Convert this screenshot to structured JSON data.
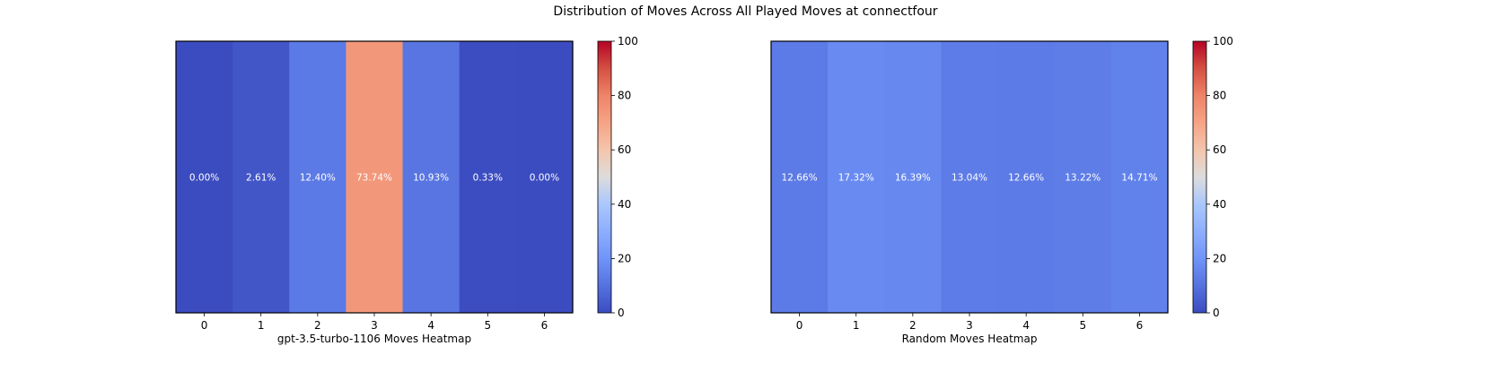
{
  "figure": {
    "title": "Distribution of Moves Across All Played Moves at connectfour"
  },
  "chart_data": [
    {
      "type": "heatmap",
      "xlabel": "gpt-3.5-turbo-1106 Moves Heatmap",
      "categories": [
        "0",
        "1",
        "2",
        "3",
        "4",
        "5",
        "6"
      ],
      "values": [
        0.0,
        2.61,
        12.4,
        73.74,
        10.93,
        0.33,
        0.0
      ],
      "value_labels": [
        "0.00%",
        "2.61%",
        "12.40%",
        "73.74%",
        "10.93%",
        "0.33%",
        "0.00%"
      ],
      "colormap": "coolwarm",
      "vmin": 0,
      "vmax": 100,
      "colorbar_ticks": [
        "0",
        "20",
        "40",
        "60",
        "80",
        "100"
      ]
    },
    {
      "type": "heatmap",
      "xlabel": "Random Moves Heatmap",
      "categories": [
        "0",
        "1",
        "2",
        "3",
        "4",
        "5",
        "6"
      ],
      "values": [
        12.66,
        17.32,
        16.39,
        13.04,
        12.66,
        13.22,
        14.71
      ],
      "value_labels": [
        "12.66%",
        "17.32%",
        "16.39%",
        "13.04%",
        "12.66%",
        "13.22%",
        "14.71%"
      ],
      "colormap": "coolwarm",
      "vmin": 0,
      "vmax": 100,
      "colorbar_ticks": [
        "0",
        "20",
        "40",
        "60",
        "80",
        "100"
      ]
    }
  ]
}
